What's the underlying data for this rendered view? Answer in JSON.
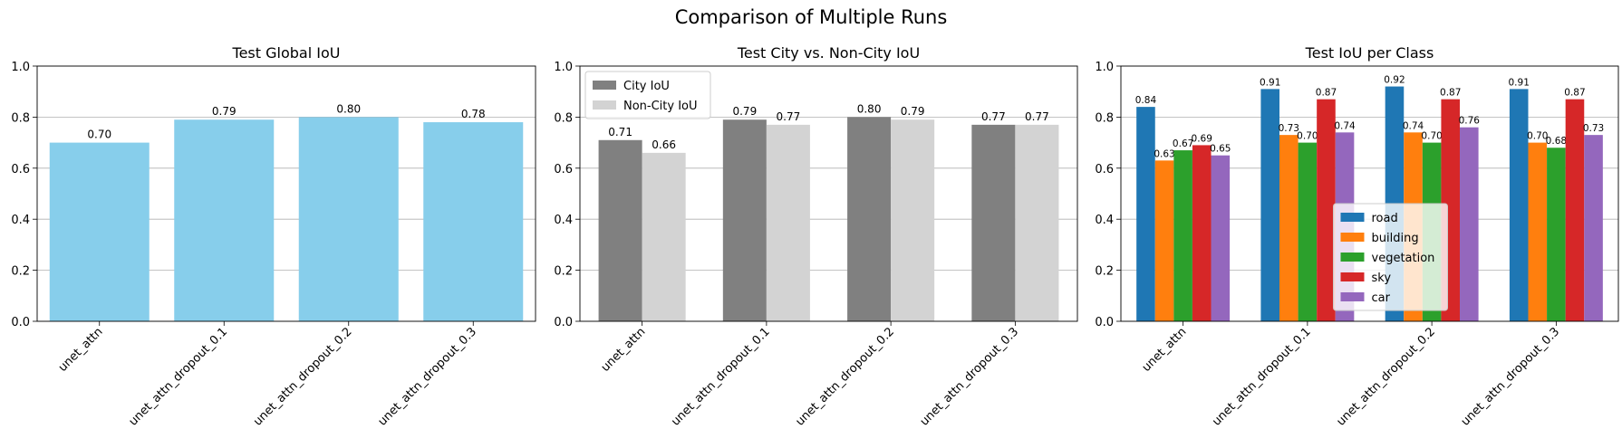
{
  "figure": {
    "title": "Comparison of Multiple Runs"
  },
  "chart_data": [
    {
      "type": "bar",
      "title": "Test Global IoU",
      "xlabel": "",
      "ylabel": "",
      "ylim": [
        0,
        1.0
      ],
      "yticks": [
        "0.0",
        "0.2",
        "0.4",
        "0.6",
        "0.8",
        "1.0"
      ],
      "grid": "y",
      "categories": [
        "unet_attn",
        "unet_attn_dropout_0.1",
        "unet_attn_dropout_0.2",
        "unet_attn_dropout_0.3"
      ],
      "series": [
        {
          "values": [
            0.7,
            0.79,
            0.8,
            0.78
          ],
          "labels": [
            "0.70",
            "0.79",
            "0.80",
            "0.78"
          ],
          "color": "#87ceeb"
        }
      ]
    },
    {
      "type": "bar",
      "title": "Test City vs. Non-City IoU",
      "xlabel": "",
      "ylabel": "",
      "ylim": [
        0,
        1.0
      ],
      "yticks": [
        "0.0",
        "0.2",
        "0.4",
        "0.6",
        "0.8",
        "1.0"
      ],
      "grid": "y",
      "legend": "top-left",
      "categories": [
        "unet_attn",
        "unet_attn_dropout_0.1",
        "unet_attn_dropout_0.2",
        "unet_attn_dropout_0.3"
      ],
      "series": [
        {
          "name": "City IoU",
          "values": [
            0.71,
            0.79,
            0.8,
            0.77
          ],
          "labels": [
            "0.71",
            "0.79",
            "0.80",
            "0.77"
          ],
          "color": "#808080"
        },
        {
          "name": "Non-City IoU",
          "values": [
            0.66,
            0.77,
            0.79,
            0.77
          ],
          "labels": [
            "0.66",
            "0.77",
            "0.79",
            "0.77"
          ],
          "color": "#d3d3d3"
        }
      ]
    },
    {
      "type": "bar",
      "title": "Test IoU per Class",
      "xlabel": "",
      "ylabel": "",
      "ylim": [
        0,
        1.0
      ],
      "yticks": [
        "0.0",
        "0.2",
        "0.4",
        "0.6",
        "0.8",
        "1.0"
      ],
      "grid": "y",
      "legend": "lower-center",
      "categories": [
        "unet_attn",
        "unet_attn_dropout_0.1",
        "unet_attn_dropout_0.2",
        "unet_attn_dropout_0.3"
      ],
      "series": [
        {
          "name": "road",
          "values": [
            0.84,
            0.91,
            0.92,
            0.91
          ],
          "labels": [
            "0.84",
            "0.91",
            "0.92",
            "0.91"
          ],
          "color": "#1f77b4"
        },
        {
          "name": "building",
          "values": [
            0.63,
            0.73,
            0.74,
            0.7
          ],
          "labels": [
            "0.63",
            "0.73",
            "0.74",
            "0.70"
          ],
          "color": "#ff7f0e"
        },
        {
          "name": "vegetation",
          "values": [
            0.67,
            0.7,
            0.7,
            0.68
          ],
          "labels": [
            "0.67",
            "0.70",
            "0.70",
            "0.68"
          ],
          "color": "#2ca02c"
        },
        {
          "name": "sky",
          "values": [
            0.69,
            0.87,
            0.87,
            0.87
          ],
          "labels": [
            "0.69",
            "0.87",
            "0.87",
            "0.87"
          ],
          "color": "#d62728"
        },
        {
          "name": "car",
          "values": [
            0.65,
            0.74,
            0.76,
            0.73
          ],
          "labels": [
            "0.65",
            "0.74",
            "0.76",
            "0.73"
          ],
          "color": "#9467bd"
        }
      ]
    }
  ]
}
